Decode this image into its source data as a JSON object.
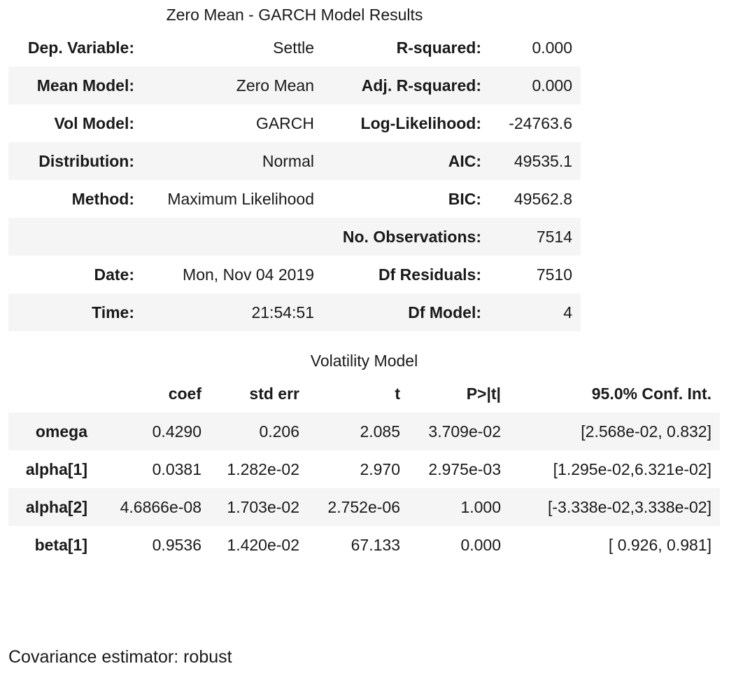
{
  "summary": {
    "caption": "Zero Mean - GARCH Model Results",
    "rows": [
      {
        "k1": "Dep. Variable:",
        "v1": "Settle",
        "k2": "R-squared:",
        "v2": "0.000"
      },
      {
        "k1": "Mean Model:",
        "v1": "Zero Mean",
        "k2": "Adj. R-squared:",
        "v2": "0.000"
      },
      {
        "k1": "Vol Model:",
        "v1": "GARCH",
        "k2": "Log-Likelihood:",
        "v2": "-24763.6"
      },
      {
        "k1": "Distribution:",
        "v1": "Normal",
        "k2": "AIC:",
        "v2": "49535.1"
      },
      {
        "k1": "Method:",
        "v1": "Maximum Likelihood",
        "k2": "BIC:",
        "v2": "49562.8"
      },
      {
        "k1": "",
        "v1": "",
        "k2": "No. Observations:",
        "v2": "7514"
      },
      {
        "k1": "Date:",
        "v1": "Mon, Nov 04 2019",
        "k2": "Df Residuals:",
        "v2": "7510"
      },
      {
        "k1": "Time:",
        "v1": "21:54:51",
        "k2": "Df Model:",
        "v2": "4"
      }
    ]
  },
  "volatility": {
    "caption": "Volatility Model",
    "headers": [
      "",
      "coef",
      "std err",
      "t",
      "P>|t|",
      "95.0% Conf. Int."
    ],
    "rows": [
      {
        "param": "omega",
        "coef": "0.4290",
        "std_err": "0.206",
        "t": "2.085",
        "p": "3.709e-02",
        "ci": "[2.568e-02,  0.832]"
      },
      {
        "param": "alpha[1]",
        "coef": "0.0381",
        "std_err": "1.282e-02",
        "t": "2.970",
        "p": "2.975e-03",
        "ci": "[1.295e-02,6.321e-02]"
      },
      {
        "param": "alpha[2]",
        "coef": "4.6866e-08",
        "std_err": "1.703e-02",
        "t": "2.752e-06",
        "p": "1.000",
        "ci": "[-3.338e-02,3.338e-02]"
      },
      {
        "param": "beta[1]",
        "coef": "0.9536",
        "std_err": "1.420e-02",
        "t": "67.133",
        "p": "0.000",
        "ci": "[ 0.926,  0.981]"
      }
    ]
  },
  "footer": {
    "covariance_note": "Covariance estimator: robust"
  },
  "colors": {
    "row_shade": "#f5f5f5",
    "text": "#1a1a1a"
  }
}
